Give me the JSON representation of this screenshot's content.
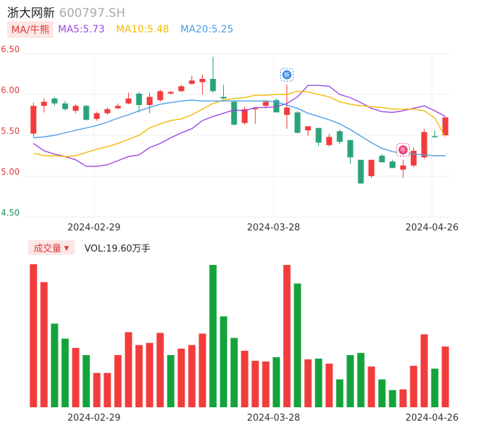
{
  "header": {
    "name": "浙大网新",
    "code": "600797.SH"
  },
  "ma_legend": {
    "button": "MA/牛熊",
    "items": [
      {
        "label": "MA5:5.73",
        "color": "#9b47e0"
      },
      {
        "label": "MA10:5.48",
        "color": "#f5b800"
      },
      {
        "label": "MA20:5.25",
        "color": "#4a9ee8"
      }
    ]
  },
  "volume_legend": {
    "button": "成交量",
    "value": "VOL:19.60万手"
  },
  "colors": {
    "up": "#f23c3c",
    "down": "#14a33a",
    "green_candle": "#2aa37a"
  },
  "chart_data": [
    {
      "type": "candlestick",
      "y_ticks": [
        "6.50",
        "6.00",
        "5.50",
        "5.00",
        "4.50"
      ],
      "ylim": [
        4.5,
        6.5
      ],
      "x_labels": [
        "2024-02-29",
        "2024-03-28",
        "2024-04-26"
      ],
      "grid": true,
      "candles": [
        {
          "o": 5.52,
          "h": 5.9,
          "l": 5.48,
          "c": 5.86
        },
        {
          "o": 5.86,
          "h": 5.95,
          "l": 5.78,
          "c": 5.91
        },
        {
          "o": 5.95,
          "h": 5.97,
          "l": 5.86,
          "c": 5.89
        },
        {
          "o": 5.89,
          "h": 5.92,
          "l": 5.8,
          "c": 5.82
        },
        {
          "o": 5.8,
          "h": 5.88,
          "l": 5.77,
          "c": 5.86
        },
        {
          "o": 5.86,
          "h": 5.87,
          "l": 5.68,
          "c": 5.69
        },
        {
          "o": 5.7,
          "h": 5.79,
          "l": 5.68,
          "c": 5.77
        },
        {
          "o": 5.77,
          "h": 5.84,
          "l": 5.75,
          "c": 5.82
        },
        {
          "o": 5.83,
          "h": 5.89,
          "l": 5.82,
          "c": 5.86
        },
        {
          "o": 5.89,
          "h": 6.02,
          "l": 5.88,
          "c": 5.95
        },
        {
          "o": 6.01,
          "h": 6.03,
          "l": 5.78,
          "c": 5.87
        },
        {
          "o": 5.87,
          "h": 6.02,
          "l": 5.77,
          "c": 5.97
        },
        {
          "o": 5.93,
          "h": 6.06,
          "l": 5.91,
          "c": 6.04
        },
        {
          "o": 6.01,
          "h": 6.04,
          "l": 6.0,
          "c": 6.03
        },
        {
          "o": 6.04,
          "h": 6.12,
          "l": 6.03,
          "c": 6.1
        },
        {
          "o": 6.13,
          "h": 6.23,
          "l": 6.12,
          "c": 6.17
        },
        {
          "o": 6.15,
          "h": 6.24,
          "l": 6.0,
          "c": 6.19
        },
        {
          "o": 6.19,
          "h": 6.46,
          "l": 6.02,
          "c": 6.04
        },
        {
          "o": 5.97,
          "h": 6.12,
          "l": 5.94,
          "c": 5.95
        },
        {
          "o": 5.91,
          "h": 5.93,
          "l": 5.62,
          "c": 5.63
        },
        {
          "o": 5.65,
          "h": 5.85,
          "l": 5.63,
          "c": 5.82
        },
        {
          "o": 5.82,
          "h": 5.82,
          "l": 5.64,
          "c": 5.83
        },
        {
          "o": 5.86,
          "h": 5.93,
          "l": 5.83,
          "c": 5.91
        },
        {
          "o": 5.93,
          "h": 5.95,
          "l": 5.78,
          "c": 5.78
        },
        {
          "o": 5.75,
          "h": 6.12,
          "l": 5.58,
          "c": 5.84
        },
        {
          "o": 5.78,
          "h": 5.8,
          "l": 5.52,
          "c": 5.53
        },
        {
          "o": 5.56,
          "h": 5.61,
          "l": 5.49,
          "c": 5.61
        },
        {
          "o": 5.59,
          "h": 5.59,
          "l": 5.37,
          "c": 5.41
        },
        {
          "o": 5.38,
          "h": 5.52,
          "l": 5.36,
          "c": 5.48
        },
        {
          "o": 5.55,
          "h": 5.57,
          "l": 5.39,
          "c": 5.42
        },
        {
          "o": 5.44,
          "h": 5.45,
          "l": 5.15,
          "c": 5.23
        },
        {
          "o": 5.2,
          "h": 5.2,
          "l": 4.91,
          "c": 4.91
        },
        {
          "o": 5.0,
          "h": 5.19,
          "l": 4.98,
          "c": 5.2
        },
        {
          "o": 5.25,
          "h": 5.27,
          "l": 5.17,
          "c": 5.17
        },
        {
          "o": 5.18,
          "h": 5.2,
          "l": 5.1,
          "c": 5.1
        },
        {
          "o": 5.08,
          "h": 5.2,
          "l": 4.98,
          "c": 5.13
        },
        {
          "o": 5.13,
          "h": 5.35,
          "l": 5.11,
          "c": 5.31
        },
        {
          "o": 5.23,
          "h": 5.58,
          "l": 5.21,
          "c": 5.54
        },
        {
          "o": 5.49,
          "h": 5.56,
          "l": 5.47,
          "c": 5.48
        },
        {
          "o": 5.5,
          "h": 5.72,
          "l": 5.5,
          "c": 5.72
        }
      ],
      "ma5": [
        5.4,
        5.31,
        5.27,
        5.24,
        5.2,
        5.12,
        5.12,
        5.14,
        5.19,
        5.24,
        5.26,
        5.35,
        5.4,
        5.47,
        5.53,
        5.58,
        5.68,
        5.73,
        5.77,
        5.81,
        5.8,
        5.84,
        5.84,
        5.85,
        5.89,
        5.97,
        6.11,
        6.11,
        6.1,
        6.0,
        5.96,
        5.9,
        5.83,
        5.79,
        5.78,
        5.8,
        5.83,
        5.86,
        5.8,
        5.73
      ],
      "ma10": [
        5.28,
        5.25,
        5.25,
        5.24,
        5.25,
        5.29,
        5.33,
        5.36,
        5.4,
        5.45,
        5.5,
        5.59,
        5.64,
        5.68,
        5.7,
        5.75,
        5.82,
        5.89,
        5.93,
        5.95,
        5.96,
        5.99,
        5.99,
        6.0,
        6.0,
        6.04,
        6.03,
        6.0,
        5.97,
        5.91,
        5.88,
        5.86,
        5.85,
        5.84,
        5.82,
        5.82,
        5.82,
        5.8,
        5.71,
        5.48
      ],
      "ma20": [
        5.47,
        5.48,
        5.5,
        5.53,
        5.56,
        5.59,
        5.62,
        5.66,
        5.71,
        5.75,
        5.8,
        5.84,
        5.88,
        5.9,
        5.92,
        5.93,
        5.92,
        5.92,
        5.92,
        5.92,
        5.92,
        5.92,
        5.92,
        5.91,
        5.87,
        5.83,
        5.77,
        5.73,
        5.69,
        5.64,
        5.57,
        5.49,
        5.41,
        5.34,
        5.3,
        5.28,
        5.27,
        5.26,
        5.25,
        5.25
      ],
      "ma_series_names": [
        "MA5",
        "MA10",
        "MA20"
      ],
      "markers": [
        {
          "index": 24,
          "symbol": "新",
          "color": "#3d8ce0"
        },
        {
          "index": 35,
          "symbol": "牛",
          "color": "#e8457d"
        }
      ]
    },
    {
      "type": "bar",
      "name": "成交量",
      "x_labels": [
        "2024-02-29",
        "2024-03-28",
        "2024-04-26"
      ],
      "values": [
        100,
        87.5,
        58.5,
        48,
        41.5,
        36.5,
        24,
        24,
        36.5,
        52.5,
        43.5,
        45,
        52,
        36.5,
        41,
        43.5,
        51.5,
        99.5,
        63.5,
        48.5,
        39.5,
        32.5,
        32,
        35,
        99.5,
        86.5,
        33.5,
        34,
        30.5,
        19.5,
        36.5,
        38,
        28.5,
        19.5,
        12,
        12.5,
        29,
        51,
        27,
        42.5
      ],
      "up": [
        true,
        true,
        false,
        false,
        true,
        false,
        true,
        true,
        true,
        true,
        true,
        true,
        true,
        false,
        true,
        true,
        true,
        false,
        false,
        false,
        true,
        true,
        true,
        false,
        true,
        false,
        true,
        false,
        true,
        false,
        false,
        false,
        true,
        false,
        false,
        true,
        true,
        true,
        false,
        true
      ]
    }
  ]
}
